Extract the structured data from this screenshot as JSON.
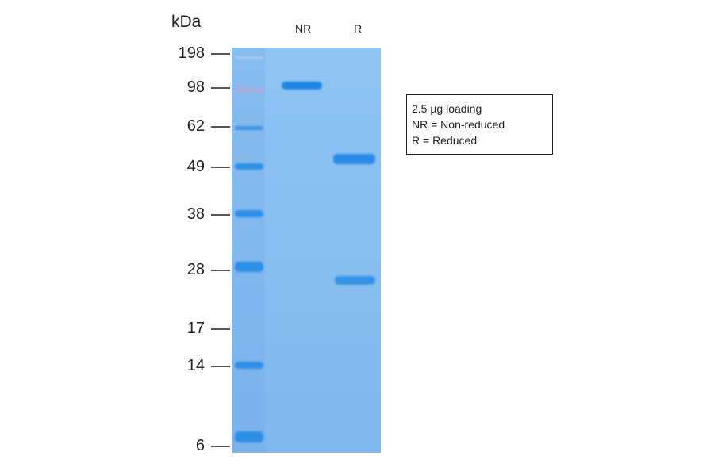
{
  "unit_label": "kDa",
  "lanes": [
    "NR",
    "R"
  ],
  "markers": [
    {
      "label": "198",
      "value": 198
    },
    {
      "label": "98",
      "value": 98
    },
    {
      "label": "62",
      "value": 62
    },
    {
      "label": "49",
      "value": 49
    },
    {
      "label": "38",
      "value": 38
    },
    {
      "label": "28",
      "value": 28
    },
    {
      "label": "17",
      "value": 17
    },
    {
      "label": "14",
      "value": 14
    },
    {
      "label": "6",
      "value": 6
    }
  ],
  "bands": {
    "NR": [
      "~100 kDa"
    ],
    "R": [
      "~50 kDa",
      "~25 kDa"
    ]
  },
  "legend": [
    "2.5 µg loading",
    "NR = Non-reduced",
    "R = Reduced"
  ],
  "colors": {
    "gel": "#8fc4f2",
    "band": "#2e8fe6"
  }
}
